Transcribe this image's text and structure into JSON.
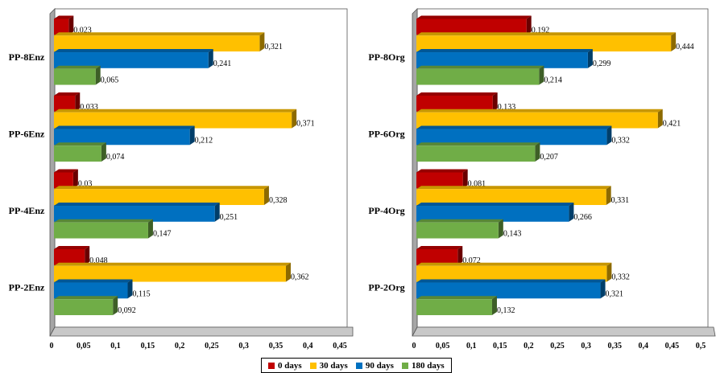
{
  "legend": {
    "s0": "0 days",
    "s1": "30 days",
    "s2": "90 days",
    "s3": "180 days"
  },
  "colors": {
    "s0": "#c00000",
    "s1": "#ffc000",
    "s2": "#0070c0",
    "s3": "#70ad47"
  },
  "chart_data": [
    {
      "type": "bar",
      "orientation": "horizontal",
      "categories": [
        "PP-8Enz",
        "PP-6Enz",
        "PP-4Enz",
        "PP-2Enz"
      ],
      "series": [
        {
          "name": "0 days",
          "values": [
            0.023,
            0.033,
            0.03,
            0.048
          ],
          "labels": [
            "0,023",
            "0,033",
            "0,03",
            "0,048"
          ]
        },
        {
          "name": "30 days",
          "values": [
            0.321,
            0.371,
            0.328,
            0.362
          ],
          "labels": [
            "0,321",
            "0,371",
            "0,328",
            "0,362"
          ]
        },
        {
          "name": "90 days",
          "values": [
            0.241,
            0.212,
            0.251,
            0.115
          ],
          "labels": [
            "0,241",
            "0,212",
            "0,251",
            "0,115"
          ]
        },
        {
          "name": "180 days",
          "values": [
            0.065,
            0.074,
            0.147,
            0.092
          ],
          "labels": [
            "0,065",
            "0,074",
            "0,147",
            "0,092"
          ]
        }
      ],
      "xlim": [
        0,
        0.45
      ],
      "ticks": [
        "0",
        "0,05",
        "0,1",
        "0,15",
        "0,2",
        "0,25",
        "0,3",
        "0,35",
        "0,4",
        "0,45"
      ],
      "grid": false
    },
    {
      "type": "bar",
      "orientation": "horizontal",
      "categories": [
        "PP-8Org",
        "PP-6Org",
        "PP-4Org",
        "PP-2Org"
      ],
      "series": [
        {
          "name": "0 days",
          "values": [
            0.192,
            0.133,
            0.081,
            0.072
          ],
          "labels": [
            "0,192",
            "0,133",
            "0,081",
            "0,072"
          ]
        },
        {
          "name": "30 days",
          "values": [
            0.444,
            0.421,
            0.331,
            0.332
          ],
          "labels": [
            "0,444",
            "0,421",
            "0,331",
            "0,332"
          ]
        },
        {
          "name": "90 days",
          "values": [
            0.299,
            0.332,
            0.266,
            0.321
          ],
          "labels": [
            "0,299",
            "0,332",
            "0,266",
            "0,321"
          ]
        },
        {
          "name": "180 days",
          "values": [
            0.214,
            0.207,
            0.143,
            0.132
          ],
          "labels": [
            "0,214",
            "0,207",
            "0,143",
            "0,132"
          ]
        }
      ],
      "xlim": [
        0,
        0.5
      ],
      "ticks": [
        "0",
        "0,05",
        "0,1",
        "0,15",
        "0,2",
        "0,25",
        "0,3",
        "0,35",
        "0,4",
        "0,45",
        "0,5"
      ],
      "grid": false
    }
  ]
}
